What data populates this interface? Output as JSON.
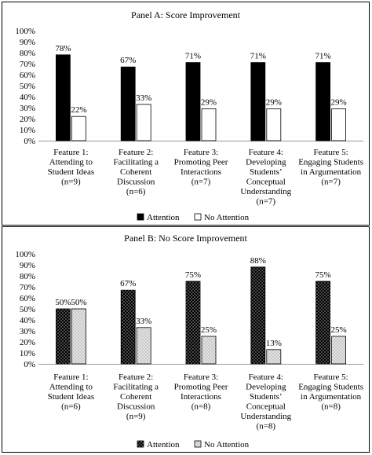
{
  "chart_data": [
    {
      "type": "bar",
      "title": "Panel A: Score Improvement",
      "categories": [
        [
          "Feature 1:",
          "Attending to",
          "Student Ideas",
          "(n=9)"
        ],
        [
          "Feature 2:",
          "Facilitating a",
          "Coherent",
          "Discussion",
          "(n=6)"
        ],
        [
          "Feature 3:",
          "Promoting Peer",
          "Interactions",
          "(n=7)"
        ],
        [
          "Feature 4:",
          "Developing",
          "Students’",
          "Conceptual",
          "Understanding",
          "(n=7)"
        ],
        [
          "Feature 5:",
          "Engaging Students",
          "in Argumentation",
          "(n=7)"
        ]
      ],
      "series": [
        {
          "name": "Attention",
          "values": [
            78,
            67,
            71,
            71,
            71
          ],
          "labels": [
            "78%",
            "67%",
            "71%",
            "71%",
            "71%"
          ],
          "fill": "solid-black"
        },
        {
          "name": "No Attention",
          "values": [
            22,
            33,
            29,
            29,
            29
          ],
          "labels": [
            "22%",
            "33%",
            "29%",
            "29%",
            "29%"
          ],
          "fill": "white"
        }
      ],
      "ylim": [
        0,
        100
      ],
      "yticks": [
        "0%",
        "10%",
        "20%",
        "30%",
        "40%",
        "50%",
        "60%",
        "70%",
        "80%",
        "90%",
        "100%"
      ],
      "legend": "bottom-center"
    },
    {
      "type": "bar",
      "title": "Panel B: No Score Improvement",
      "categories": [
        [
          "Feature 1:",
          "Attending to",
          "Student Ideas",
          "(n=6)"
        ],
        [
          "Feature 2:",
          "Facilitating a",
          "Coherent",
          "Discussion",
          "(n=9)"
        ],
        [
          "Feature 3:",
          "Promoting Peer",
          "Interactions",
          "(n=8)"
        ],
        [
          "Feature 4:",
          "Developing",
          "Students’",
          "Conceptual",
          "Understanding",
          "(n=8)"
        ],
        [
          "Feature 5:",
          "Engaging Students",
          "in Argumentation",
          "(n=8)"
        ]
      ],
      "series": [
        {
          "name": "Attention",
          "values": [
            50,
            67,
            75,
            88,
            75
          ],
          "labels": [
            "50%",
            "67%",
            "75%",
            "88%",
            "75%"
          ],
          "fill": "dotted-black"
        },
        {
          "name": "No Attention",
          "values": [
            50,
            33,
            25,
            13,
            25
          ],
          "labels": [
            "50%",
            "33%",
            "25%",
            "13%",
            "25%"
          ],
          "fill": "dotted-light"
        }
      ],
      "ylim": [
        0,
        100
      ],
      "yticks": [
        "0%",
        "10%",
        "20%",
        "30%",
        "40%",
        "50%",
        "60%",
        "70%",
        "80%",
        "90%",
        "100%"
      ],
      "legend": "bottom-center"
    }
  ]
}
